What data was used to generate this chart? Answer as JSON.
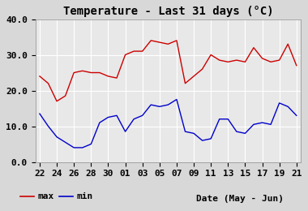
{
  "title": "Temperature - Last 31 days (°C)",
  "xlabel": "Date (May - Jun)",
  "xtick_labels": [
    "22",
    "24",
    "26",
    "28",
    "30",
    "01",
    "03",
    "05",
    "07",
    "09",
    "11",
    "13",
    "15",
    "17",
    "19",
    "21"
  ],
  "ytick_labels": [
    "0.0",
    "10.0",
    "20.0",
    "30.0",
    "40.0"
  ],
  "ylim": [
    0.0,
    40.0
  ],
  "max_temps": [
    24.0,
    22.0,
    17.0,
    18.5,
    25.0,
    25.5,
    25.0,
    25.0,
    24.0,
    23.5,
    30.0,
    31.0,
    31.0,
    34.0,
    33.5,
    33.0,
    34.0,
    22.0,
    24.0,
    26.0,
    30.0,
    28.5,
    28.0,
    28.5,
    28.0,
    32.0,
    29.0,
    28.0,
    28.5,
    33.0,
    27.0
  ],
  "min_temps": [
    13.5,
    10.0,
    7.0,
    5.5,
    4.0,
    4.0,
    5.0,
    11.0,
    12.5,
    13.0,
    8.5,
    12.0,
    13.0,
    16.0,
    15.5,
    16.0,
    17.5,
    8.5,
    8.0,
    6.0,
    6.5,
    12.0,
    12.0,
    8.5,
    8.0,
    10.5,
    11.0,
    10.5,
    16.5,
    15.5,
    13.0
  ],
  "max_color": "#cc0000",
  "min_color": "#0000cc",
  "bg_color": "#d8d8d8",
  "plot_bg_color": "#e8e8e8",
  "grid_color": "#ffffff",
  "title_fontsize": 10,
  "tick_fontsize": 8,
  "legend_fontsize": 8,
  "xlabel_fontsize": 8
}
